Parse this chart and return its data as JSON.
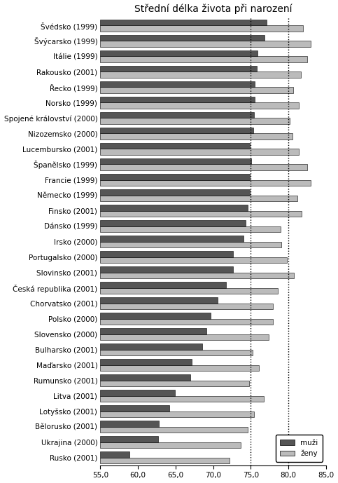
{
  "title": "Střední délka života při narození",
  "countries": [
    "Švédsko (1999)",
    "Švýcarsko (1999)",
    "Itálie (1999)",
    "Rakousko (2001)",
    "Řecko (1999)",
    "Norsko (1999)",
    "Spojené království (2000)",
    "Nizozemsko (2000)",
    "Lucembursko (2001)",
    "Španělsko (1999)",
    "Francie (1999)",
    "Německo (1999)",
    "Finsko (2001)",
    "Dánsko (1999)",
    "Irsko (2000)",
    "Portugalsko (2000)",
    "Slovinsko (2001)",
    "Česká republika (2001)",
    "Chorvatsko (2001)",
    "Polsko (2000)",
    "Slovensko (2000)",
    "Bulharsko (2001)",
    "Maďarsko (2001)",
    "Rumunsko (2001)",
    "Litva (2001)",
    "Lotyšsko (2001)",
    "Bělorusko (2001)",
    "Ukrajina (2000)",
    "Rusko (2001)"
  ],
  "muzi": [
    77.1,
    76.8,
    75.9,
    75.8,
    75.5,
    75.5,
    75.4,
    75.3,
    74.9,
    75.1,
    74.9,
    74.9,
    74.6,
    74.3,
    74.0,
    72.6,
    72.6,
    71.7,
    70.6,
    69.7,
    69.1,
    68.5,
    67.1,
    67.0,
    64.9,
    64.2,
    62.8,
    62.7,
    58.9
  ],
  "zeny": [
    81.9,
    83.0,
    82.5,
    81.7,
    80.6,
    81.4,
    80.2,
    80.5,
    81.4,
    82.5,
    83.0,
    81.2,
    81.8,
    79.0,
    79.1,
    79.8,
    80.7,
    78.6,
    77.9,
    77.9,
    77.4,
    75.2,
    76.1,
    74.8,
    76.7,
    75.4,
    74.6,
    73.7,
    72.2
  ],
  "bar_color_muzi": "#555555",
  "bar_color_zeny": "#bbbbbb",
  "xlim": [
    55.0,
    85.0
  ],
  "xticks": [
    55.0,
    60.0,
    65.0,
    70.0,
    75.0,
    80.0,
    85.0
  ],
  "vlines": [
    75.0,
    80.0
  ],
  "legend_labels": [
    "muži",
    "ženy"
  ],
  "title_fontsize": 10,
  "tick_fontsize": 7.5,
  "label_fontsize": 7.5
}
